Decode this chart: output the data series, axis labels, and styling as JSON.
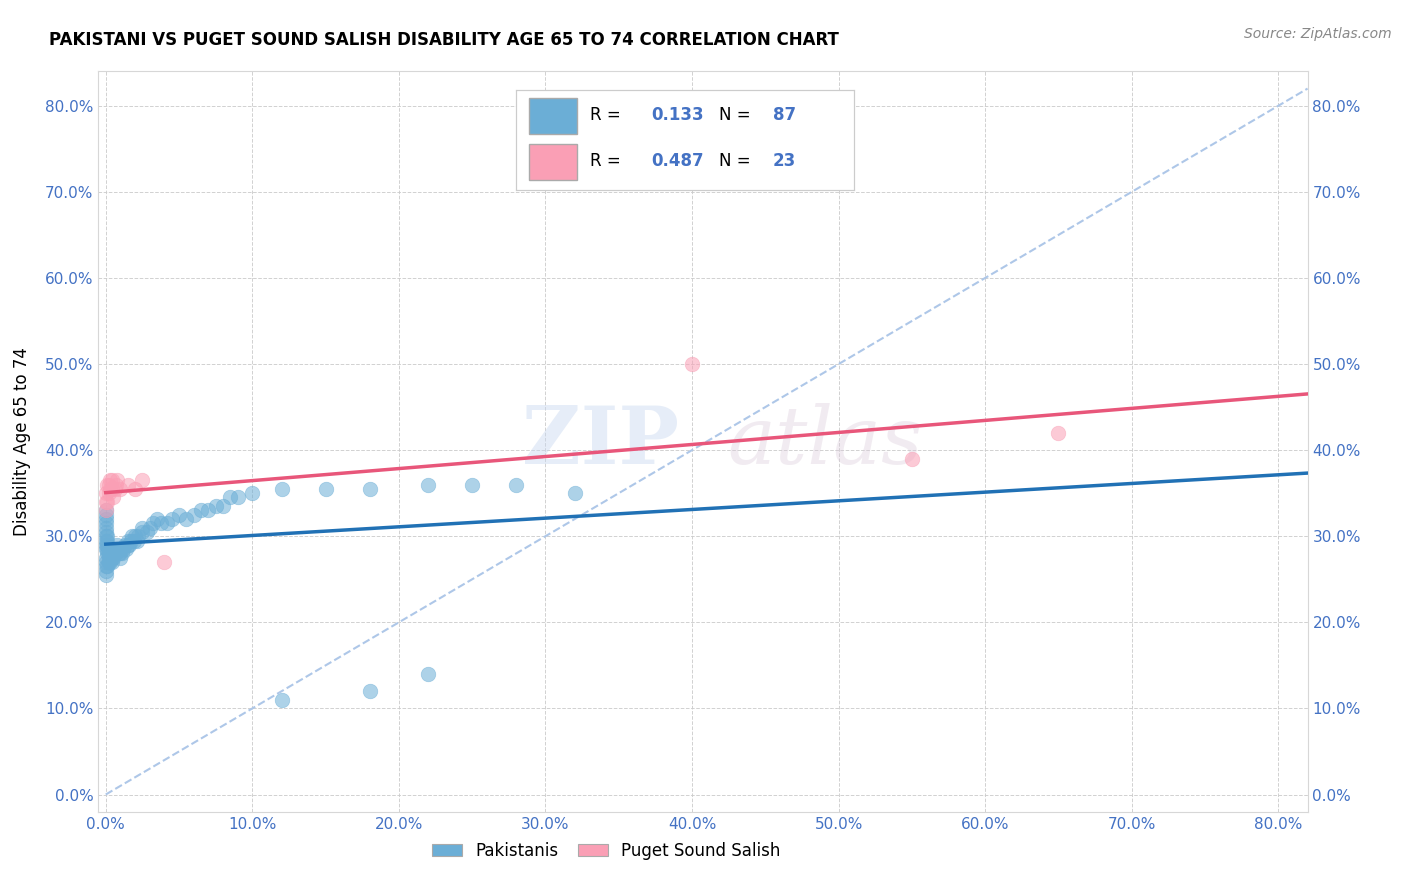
{
  "title": "PAKISTANI VS PUGET SOUND SALISH DISABILITY AGE 65 TO 74 CORRELATION CHART",
  "source": "Source: ZipAtlas.com",
  "ylabel": "Disability Age 65 to 74",
  "x_ticks": [
    0.0,
    0.1,
    0.2,
    0.3,
    0.4,
    0.5,
    0.6,
    0.7,
    0.8
  ],
  "y_ticks": [
    0.0,
    0.1,
    0.2,
    0.3,
    0.4,
    0.5,
    0.6,
    0.7,
    0.8
  ],
  "xlim": [
    -0.005,
    0.82
  ],
  "ylim": [
    -0.02,
    0.84
  ],
  "legend_labels_bottom": [
    "Pakistanis",
    "Puget Sound Salish"
  ],
  "r_pakistani": 0.133,
  "n_pakistani": 87,
  "r_salish": 0.487,
  "n_salish": 23,
  "blue_color": "#6baed6",
  "pink_color": "#fa9fb5",
  "blue_line_color": "#2171b5",
  "pink_line_color": "#e8567a",
  "dashed_line_color": "#aec7e8",
  "watermark_zip": "ZIP",
  "watermark_atlas": "atlas",
  "pak_x": [
    0.0,
    0.0,
    0.0,
    0.0,
    0.0,
    0.0,
    0.0,
    0.0,
    0.0,
    0.0,
    0.0,
    0.0,
    0.0,
    0.0,
    0.0,
    0.001,
    0.001,
    0.001,
    0.001,
    0.001,
    0.001,
    0.002,
    0.002,
    0.002,
    0.002,
    0.003,
    0.003,
    0.003,
    0.004,
    0.004,
    0.004,
    0.005,
    0.005,
    0.005,
    0.006,
    0.006,
    0.007,
    0.007,
    0.008,
    0.008,
    0.009,
    0.009,
    0.01,
    0.01,
    0.01,
    0.011,
    0.012,
    0.013,
    0.014,
    0.015,
    0.015,
    0.016,
    0.017,
    0.018,
    0.019,
    0.02,
    0.021,
    0.022,
    0.025,
    0.025,
    0.028,
    0.03,
    0.032,
    0.035,
    0.038,
    0.042,
    0.045,
    0.05,
    0.055,
    0.06,
    0.065,
    0.07,
    0.075,
    0.08,
    0.085,
    0.09,
    0.1,
    0.12,
    0.15,
    0.18,
    0.22,
    0.25,
    0.28,
    0.32,
    0.18,
    0.22,
    0.12
  ],
  "pak_y": [
    0.285,
    0.29,
    0.295,
    0.3,
    0.305,
    0.31,
    0.315,
    0.32,
    0.325,
    0.33,
    0.275,
    0.27,
    0.265,
    0.26,
    0.255,
    0.28,
    0.285,
    0.29,
    0.295,
    0.3,
    0.265,
    0.27,
    0.275,
    0.28,
    0.285,
    0.27,
    0.275,
    0.28,
    0.27,
    0.275,
    0.28,
    0.275,
    0.28,
    0.285,
    0.28,
    0.285,
    0.28,
    0.285,
    0.285,
    0.29,
    0.28,
    0.285,
    0.275,
    0.28,
    0.285,
    0.28,
    0.285,
    0.29,
    0.285,
    0.29,
    0.295,
    0.29,
    0.295,
    0.3,
    0.295,
    0.3,
    0.295,
    0.3,
    0.305,
    0.31,
    0.305,
    0.31,
    0.315,
    0.32,
    0.315,
    0.315,
    0.32,
    0.325,
    0.32,
    0.325,
    0.33,
    0.33,
    0.335,
    0.335,
    0.345,
    0.345,
    0.35,
    0.355,
    0.355,
    0.355,
    0.36,
    0.36,
    0.36,
    0.35,
    0.12,
    0.14,
    0.11
  ],
  "sal_x": [
    0.0,
    0.0,
    0.0,
    0.001,
    0.001,
    0.002,
    0.002,
    0.003,
    0.003,
    0.004,
    0.004,
    0.005,
    0.006,
    0.007,
    0.008,
    0.01,
    0.015,
    0.02,
    0.025,
    0.04,
    0.4,
    0.55,
    0.65
  ],
  "sal_y": [
    0.33,
    0.34,
    0.35,
    0.34,
    0.36,
    0.35,
    0.36,
    0.355,
    0.365,
    0.355,
    0.365,
    0.345,
    0.355,
    0.36,
    0.365,
    0.355,
    0.36,
    0.355,
    0.365,
    0.27,
    0.5,
    0.39,
    0.42
  ]
}
